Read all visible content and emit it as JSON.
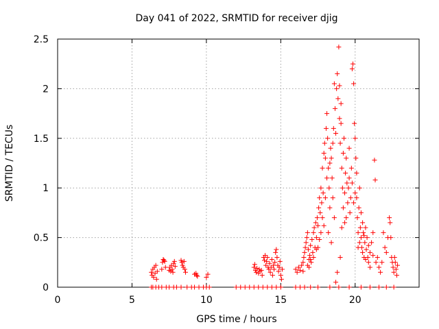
{
  "chart_data": {
    "type": "scatter",
    "title": "Day 041 of 2022, SRMTID for receiver djig",
    "xlabel": "GPS time / hours",
    "ylabel": "SRMTID / TECUs",
    "xlim": [
      0,
      24.3
    ],
    "ylim": [
      0,
      2.5
    ],
    "xticks": [
      0,
      5,
      10,
      15,
      20
    ],
    "xtick_labels": [
      "0",
      "5",
      "10",
      "15",
      "20"
    ],
    "yticks": [
      0,
      0.5,
      1,
      1.5,
      2,
      2.5
    ],
    "ytick_labels": [
      "0",
      "0.5",
      "1",
      "1.5",
      "2",
      "2.5"
    ],
    "grid": true,
    "marker": "+",
    "color": "#ff0000",
    "series": [
      {
        "name": "SRMTID",
        "points": [
          [
            6.3,
            0.0
          ],
          [
            6.4,
            0.0
          ],
          [
            6.6,
            0.0
          ],
          [
            6.8,
            0.0
          ],
          [
            7.0,
            0.0
          ],
          [
            7.3,
            0.0
          ],
          [
            7.5,
            0.0
          ],
          [
            7.8,
            0.0
          ],
          [
            8.0,
            0.0
          ],
          [
            8.3,
            0.0
          ],
          [
            8.7,
            0.0
          ],
          [
            9.0,
            0.0
          ],
          [
            9.2,
            0.0
          ],
          [
            9.5,
            0.0
          ],
          [
            9.8,
            0.0
          ],
          [
            10.0,
            0.0
          ],
          [
            10.2,
            0.0
          ],
          [
            12.0,
            0.0
          ],
          [
            12.3,
            0.0
          ],
          [
            12.6,
            0.0
          ],
          [
            12.9,
            0.0
          ],
          [
            13.2,
            0.0
          ],
          [
            13.5,
            0.0
          ],
          [
            13.8,
            0.0
          ],
          [
            14.1,
            0.0
          ],
          [
            14.4,
            0.0
          ],
          [
            14.7,
            0.0
          ],
          [
            15.0,
            0.0
          ],
          [
            16.0,
            0.0
          ],
          [
            16.3,
            0.0
          ],
          [
            16.6,
            0.0
          ],
          [
            17.0,
            0.0
          ],
          [
            17.5,
            0.0
          ],
          [
            18.3,
            0.0
          ],
          [
            18.9,
            0.0
          ],
          [
            19.6,
            0.0
          ],
          [
            20.4,
            0.0
          ],
          [
            21.0,
            0.0
          ],
          [
            21.6,
            0.0
          ],
          [
            22.1,
            0.0
          ],
          [
            22.6,
            0.0
          ],
          [
            6.3,
            0.15
          ],
          [
            6.35,
            0.12
          ],
          [
            6.4,
            0.18
          ],
          [
            6.45,
            0.1
          ],
          [
            6.5,
            0.2
          ],
          [
            6.55,
            0.14
          ],
          [
            6.6,
            0.22
          ],
          [
            6.65,
            0.08
          ],
          [
            6.7,
            0.16
          ],
          [
            7.0,
            0.18
          ],
          [
            7.05,
            0.25
          ],
          [
            7.1,
            0.28
          ],
          [
            7.15,
            0.27
          ],
          [
            7.2,
            0.26
          ],
          [
            7.25,
            0.2
          ],
          [
            7.5,
            0.17
          ],
          [
            7.55,
            0.2
          ],
          [
            7.6,
            0.16
          ],
          [
            7.65,
            0.22
          ],
          [
            7.7,
            0.18
          ],
          [
            7.75,
            0.15
          ],
          [
            7.8,
            0.24
          ],
          [
            7.85,
            0.26
          ],
          [
            7.9,
            0.21
          ],
          [
            8.3,
            0.27
          ],
          [
            8.35,
            0.25
          ],
          [
            8.4,
            0.22
          ],
          [
            8.45,
            0.2
          ],
          [
            8.5,
            0.26
          ],
          [
            8.55,
            0.18
          ],
          [
            8.6,
            0.15
          ],
          [
            9.2,
            0.13
          ],
          [
            9.3,
            0.14
          ],
          [
            9.35,
            0.12
          ],
          [
            9.4,
            0.11
          ],
          [
            10.0,
            0.1
          ],
          [
            10.1,
            0.13
          ],
          [
            13.2,
            0.2
          ],
          [
            13.25,
            0.23
          ],
          [
            13.3,
            0.17
          ],
          [
            13.35,
            0.15
          ],
          [
            13.4,
            0.19
          ],
          [
            13.5,
            0.14
          ],
          [
            13.55,
            0.18
          ],
          [
            13.6,
            0.16
          ],
          [
            13.7,
            0.17
          ],
          [
            13.75,
            0.12
          ],
          [
            13.85,
            0.3
          ],
          [
            13.9,
            0.27
          ],
          [
            13.95,
            0.32
          ],
          [
            14.0,
            0.22
          ],
          [
            14.05,
            0.26
          ],
          [
            14.1,
            0.3
          ],
          [
            14.15,
            0.2
          ],
          [
            14.2,
            0.18
          ],
          [
            14.25,
            0.24
          ],
          [
            14.3,
            0.15
          ],
          [
            14.35,
            0.2
          ],
          [
            14.4,
            0.28
          ],
          [
            14.45,
            0.12
          ],
          [
            14.5,
            0.22
          ],
          [
            14.55,
            0.18
          ],
          [
            14.6,
            0.25
          ],
          [
            14.65,
            0.35
          ],
          [
            14.7,
            0.38
          ],
          [
            14.75,
            0.3
          ],
          [
            14.8,
            0.22
          ],
          [
            14.85,
            0.16
          ],
          [
            14.9,
            0.2
          ],
          [
            14.95,
            0.26
          ],
          [
            15.0,
            0.12
          ],
          [
            15.05,
            0.08
          ],
          [
            15.1,
            0.18
          ],
          [
            16.0,
            0.18
          ],
          [
            16.1,
            0.15
          ],
          [
            16.2,
            0.2
          ],
          [
            16.3,
            0.17
          ],
          [
            16.4,
            0.22
          ],
          [
            16.5,
            0.25
          ],
          [
            16.55,
            0.3
          ],
          [
            16.6,
            0.35
          ],
          [
            16.65,
            0.4
          ],
          [
            16.7,
            0.45
          ],
          [
            16.75,
            0.5
          ],
          [
            16.8,
            0.55
          ],
          [
            16.85,
            0.38
          ],
          [
            16.9,
            0.28
          ],
          [
            16.95,
            0.32
          ],
          [
            17.0,
            0.42
          ],
          [
            17.05,
            0.25
          ],
          [
            17.1,
            0.48
          ],
          [
            17.15,
            0.35
          ],
          [
            17.2,
            0.55
          ],
          [
            17.25,
            0.6
          ],
          [
            17.3,
            0.4
          ],
          [
            17.35,
            0.65
          ],
          [
            17.4,
            0.5
          ],
          [
            17.45,
            0.7
          ],
          [
            17.5,
            0.62
          ],
          [
            17.55,
            0.8
          ],
          [
            17.6,
            0.9
          ],
          [
            17.65,
            0.75
          ],
          [
            17.7,
            1.0
          ],
          [
            17.75,
            0.85
          ],
          [
            17.8,
            1.2
          ],
          [
            17.85,
            0.95
          ],
          [
            17.9,
            1.35
          ],
          [
            17.95,
            1.45
          ],
          [
            18.0,
            1.3
          ],
          [
            18.05,
            1.6
          ],
          [
            18.1,
            1.75
          ],
          [
            18.15,
            1.5
          ],
          [
            18.2,
            1.2
          ],
          [
            18.25,
            1.0
          ],
          [
            18.3,
            0.8
          ],
          [
            18.35,
            1.4
          ],
          [
            18.4,
            1.3
          ],
          [
            18.45,
            1.1
          ],
          [
            18.5,
            0.9
          ],
          [
            18.55,
            1.6
          ],
          [
            18.6,
            2.05
          ],
          [
            18.65,
            1.8
          ],
          [
            18.7,
            1.55
          ],
          [
            18.75,
            2.0
          ],
          [
            18.8,
            2.15
          ],
          [
            18.85,
            1.9
          ],
          [
            18.9,
            2.42
          ],
          [
            18.95,
            1.7
          ],
          [
            19.0,
            1.45
          ],
          [
            19.05,
            1.65
          ],
          [
            19.1,
            1.2
          ],
          [
            19.15,
            1.0
          ],
          [
            19.2,
            1.35
          ],
          [
            19.25,
            1.5
          ],
          [
            19.3,
            0.95
          ],
          [
            19.35,
            1.15
          ],
          [
            19.4,
            1.3
          ],
          [
            19.45,
            1.05
          ],
          [
            19.5,
            0.85
          ],
          [
            19.55,
            1.0
          ],
          [
            19.6,
            1.1
          ],
          [
            19.65,
            0.75
          ],
          [
            19.7,
            0.9
          ],
          [
            19.75,
            1.2
          ],
          [
            19.8,
            2.2
          ],
          [
            19.85,
            2.25
          ],
          [
            19.9,
            2.05
          ],
          [
            19.95,
            1.65
          ],
          [
            20.0,
            1.5
          ],
          [
            20.05,
            1.3
          ],
          [
            20.1,
            0.9
          ],
          [
            20.15,
            0.7
          ],
          [
            20.2,
            0.55
          ],
          [
            20.25,
            0.8
          ],
          [
            20.3,
            0.45
          ],
          [
            20.35,
            0.6
          ],
          [
            20.4,
            0.5
          ],
          [
            20.45,
            0.4
          ],
          [
            20.5,
            0.35
          ],
          [
            20.55,
            0.55
          ],
          [
            20.6,
            0.3
          ],
          [
            20.65,
            0.45
          ],
          [
            20.7,
            0.6
          ],
          [
            20.75,
            0.38
          ],
          [
            20.8,
            0.5
          ],
          [
            20.85,
            0.3
          ],
          [
            20.9,
            0.42
          ],
          [
            21.0,
            0.35
          ],
          [
            21.1,
            0.45
          ],
          [
            21.2,
            0.55
          ],
          [
            21.3,
            1.28
          ],
          [
            21.35,
            1.08
          ],
          [
            21.4,
            0.25
          ],
          [
            21.5,
            0.3
          ],
          [
            21.6,
            0.2
          ],
          [
            21.7,
            0.15
          ],
          [
            21.8,
            0.25
          ],
          [
            21.9,
            0.55
          ],
          [
            22.0,
            0.4
          ],
          [
            22.1,
            0.35
          ],
          [
            22.2,
            0.5
          ],
          [
            22.3,
            0.7
          ],
          [
            22.35,
            0.65
          ],
          [
            22.4,
            0.5
          ],
          [
            22.45,
            0.3
          ],
          [
            22.5,
            0.25
          ],
          [
            22.55,
            0.2
          ],
          [
            22.6,
            0.15
          ],
          [
            22.65,
            0.3
          ],
          [
            22.7,
            0.25
          ],
          [
            22.75,
            0.18
          ],
          [
            22.8,
            0.12
          ],
          [
            22.85,
            0.22
          ],
          [
            18.7,
            0.05
          ],
          [
            18.8,
            0.15
          ],
          [
            19.1,
            0.6
          ],
          [
            19.0,
            0.3
          ],
          [
            18.4,
            0.45
          ],
          [
            18.2,
            0.55
          ],
          [
            17.9,
            0.62
          ],
          [
            20.3,
            1.0
          ],
          [
            20.4,
            0.75
          ],
          [
            20.0,
            0.95
          ],
          [
            19.3,
            0.65
          ],
          [
            18.6,
            0.7
          ],
          [
            17.7,
            0.55
          ],
          [
            17.5,
            0.4
          ],
          [
            17.2,
            0.3
          ],
          [
            16.9,
            0.2
          ],
          [
            18.1,
            1.1
          ],
          [
            18.3,
            1.25
          ],
          [
            19.6,
            1.4
          ],
          [
            19.8,
            1.05
          ],
          [
            19.9,
            0.85
          ],
          [
            20.5,
            0.65
          ],
          [
            20.7,
            0.28
          ],
          [
            21.0,
            0.2
          ],
          [
            21.2,
            0.32
          ],
          [
            18.5,
            1.45
          ],
          [
            18.95,
            2.03
          ],
          [
            19.05,
            1.85
          ],
          [
            19.4,
            0.7
          ],
          [
            19.2,
            0.8
          ],
          [
            18.0,
            0.9
          ],
          [
            17.8,
            0.7
          ],
          [
            17.6,
            0.48
          ],
          [
            17.4,
            0.38
          ],
          [
            17.0,
            0.28
          ],
          [
            16.8,
            0.22
          ],
          [
            16.5,
            0.16
          ],
          [
            20.1,
            1.15
          ],
          [
            20.2,
            0.4
          ],
          [
            20.6,
            0.52
          ],
          [
            20.9,
            0.25
          ]
        ]
      }
    ]
  }
}
